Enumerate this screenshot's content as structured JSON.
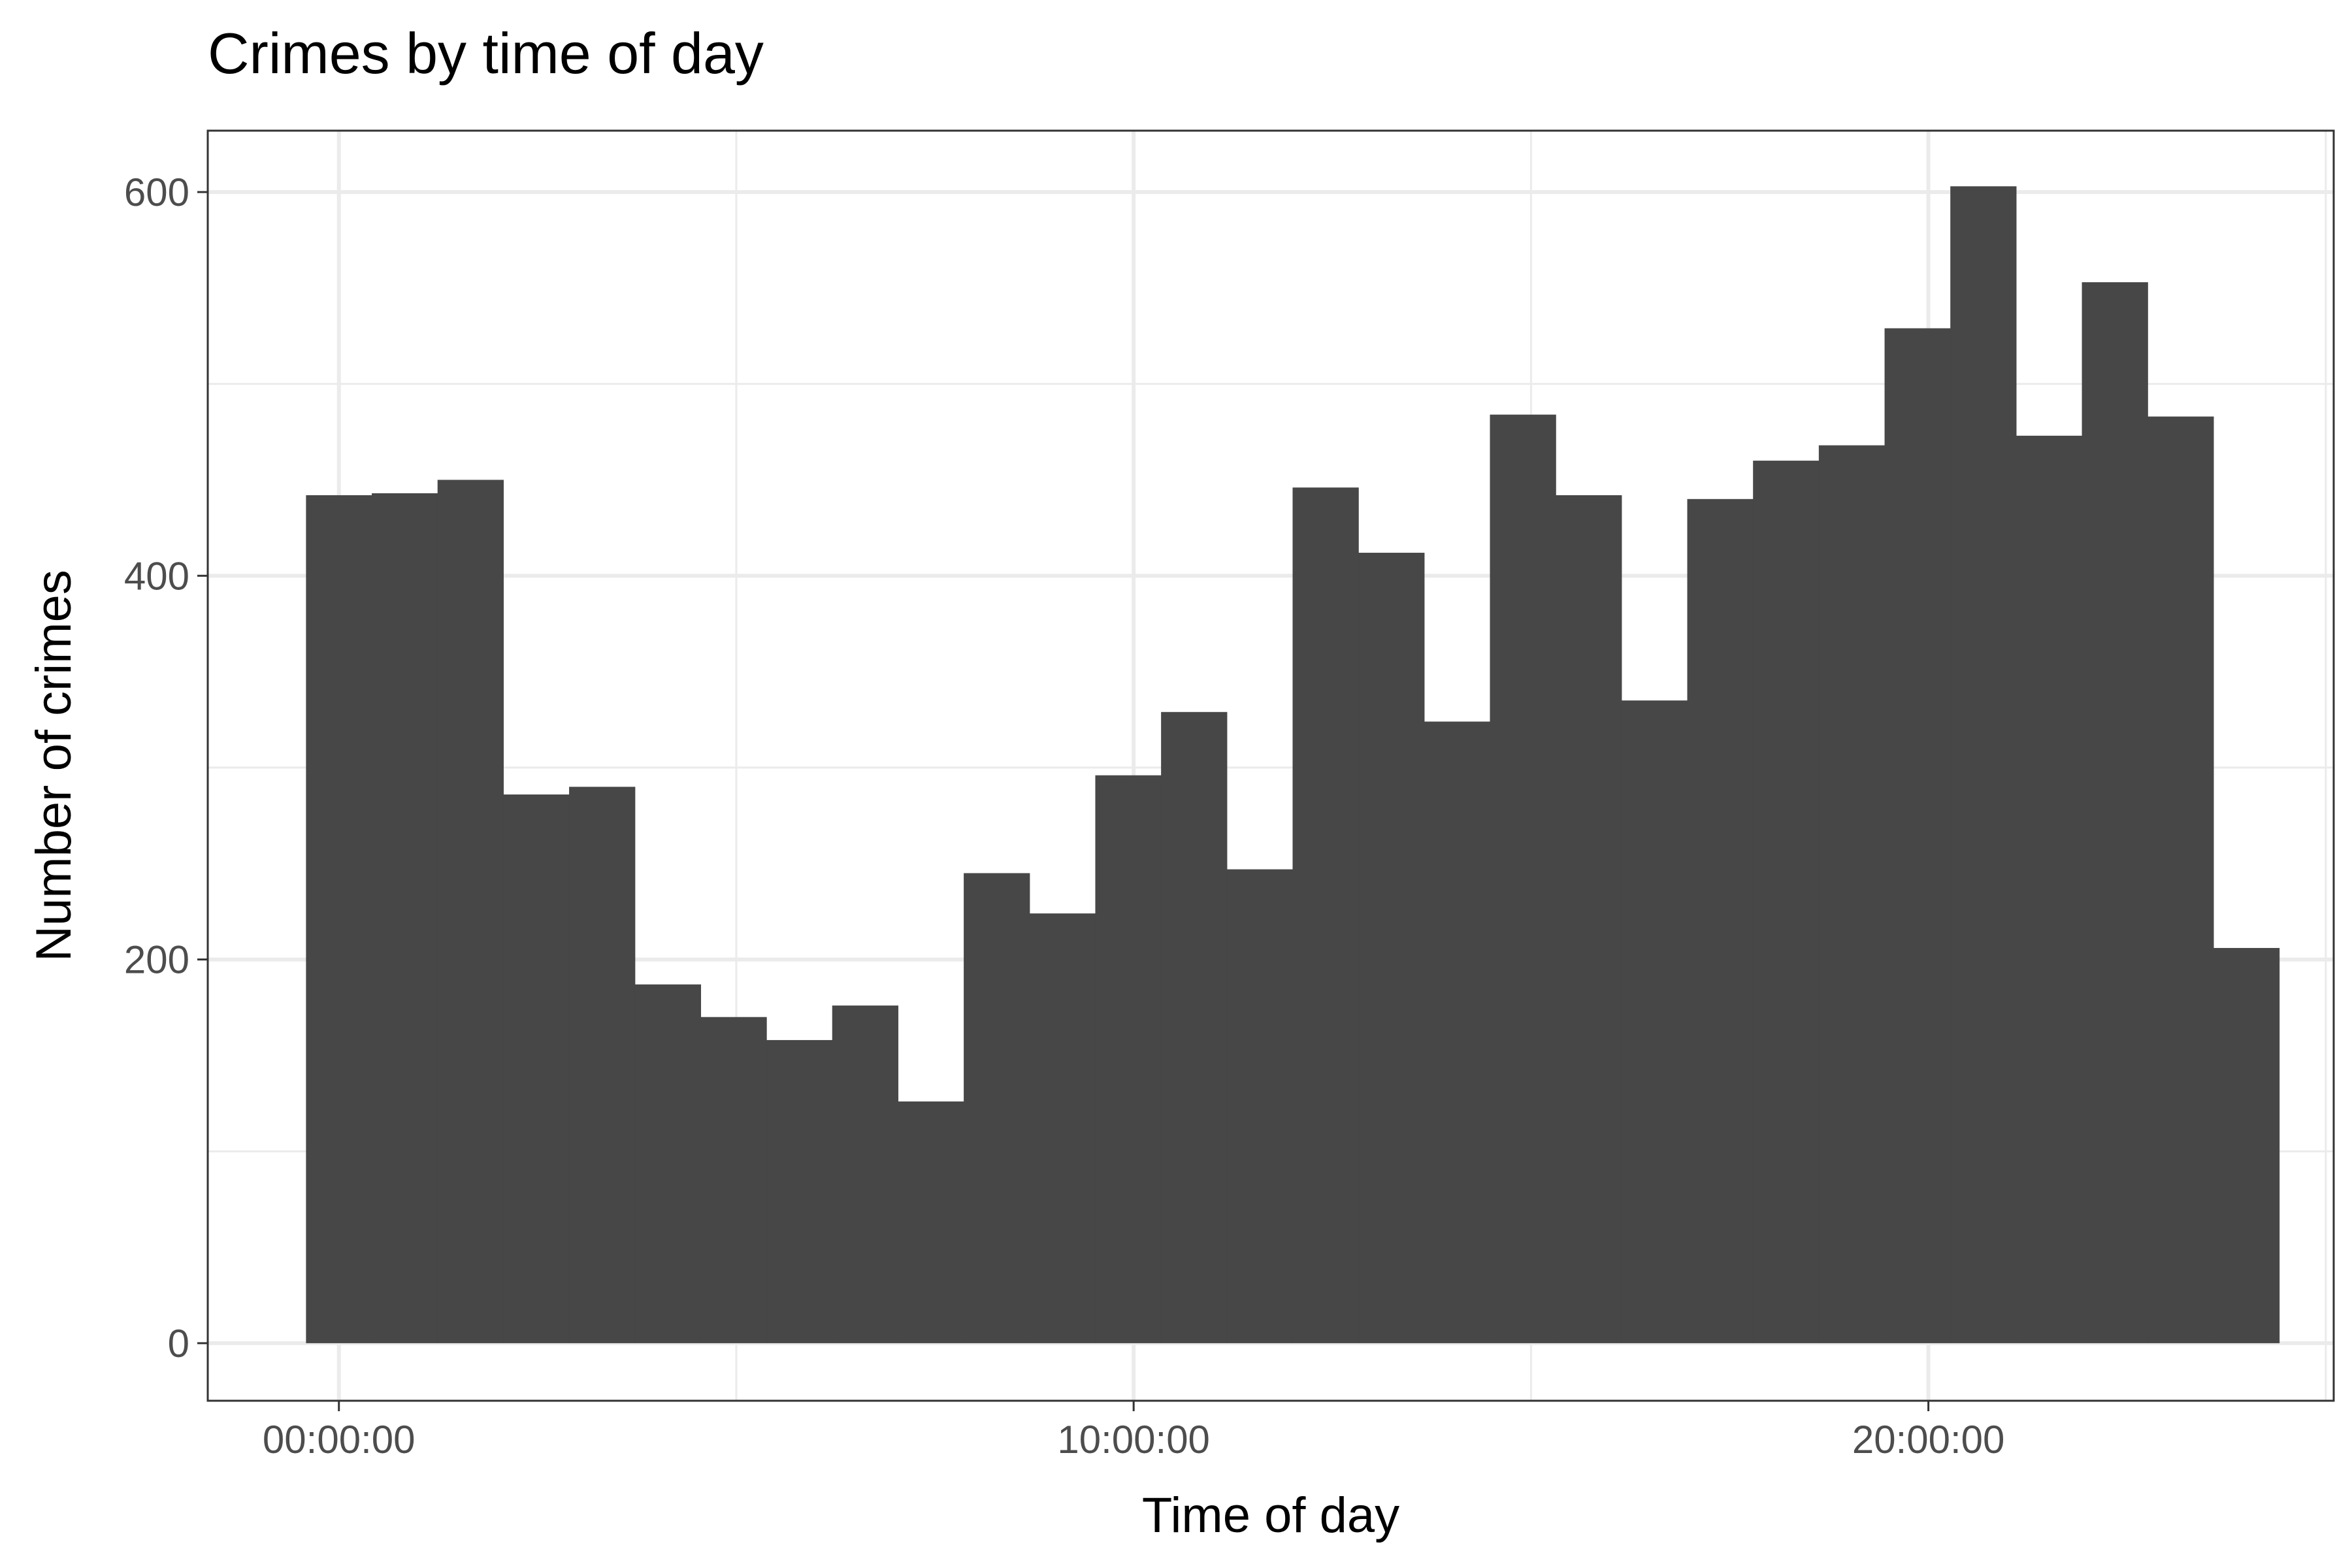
{
  "chart_data": {
    "type": "bar",
    "subtype": "histogram",
    "title": "Crimes by time of day",
    "xlabel": "Time of day",
    "ylabel": "Number of crimes",
    "x_unit": "hours",
    "x_ticks": [
      {
        "value": 0,
        "label": "00:00:00"
      },
      {
        "value": 10,
        "label": "10:00:00"
      },
      {
        "value": 20,
        "label": "20:00:00"
      }
    ],
    "y_ticks": [
      {
        "value": 0,
        "label": "0"
      },
      {
        "value": 200,
        "label": "200"
      },
      {
        "value": 400,
        "label": "400"
      },
      {
        "value": 600,
        "label": "600"
      }
    ],
    "xlim": [
      -1.65,
      25.1
    ],
    "ylim": [
      -30,
      632
    ],
    "bin_width": 0.8276,
    "bin_start": -0.4138,
    "values": [
      442,
      443,
      450,
      286,
      290,
      187,
      170,
      158,
      176,
      126,
      245,
      224,
      296,
      329,
      247,
      446,
      412,
      324,
      484,
      442,
      335,
      440,
      460,
      468,
      529,
      603,
      473,
      553,
      483,
      206
    ],
    "grid": true,
    "bar_color": "#474747",
    "theme": "bw"
  }
}
